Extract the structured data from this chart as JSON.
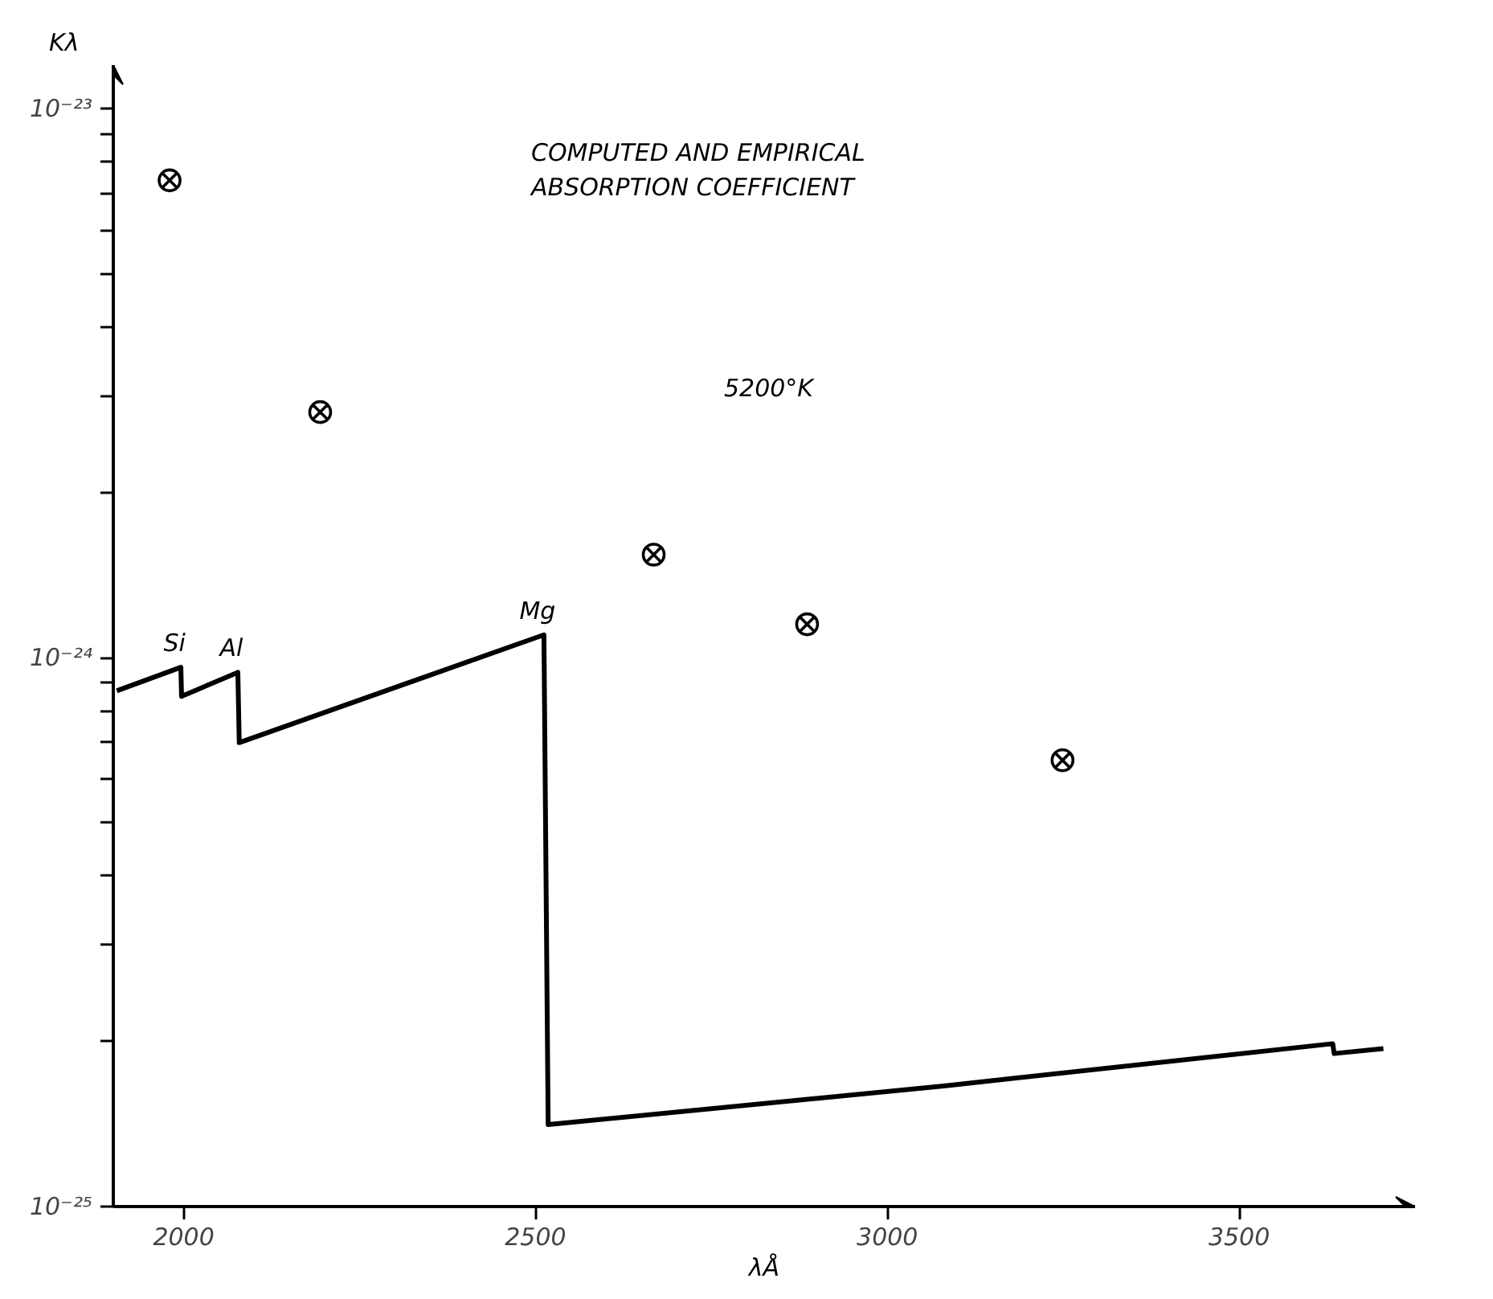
{
  "chart_data": {
    "type": "line",
    "title": "COMPUTED AND EMPIRICAL\nABSORPTION COEFFICIENT",
    "xlabel": "λÅ",
    "ylabel": "Kλ",
    "log": "y",
    "grid": false,
    "xlim": [
      1900,
      3750
    ],
    "ylim": [
      1e-25,
      1.2e-23
    ],
    "xticks": [
      2000,
      2500,
      3000,
      3500
    ],
    "yticks": [
      {
        "value": 1e-25,
        "label": "10⁻²⁵"
      },
      {
        "value": 2e-25,
        "label": null
      },
      {
        "value": 3e-25,
        "label": null
      },
      {
        "value": 4e-25,
        "label": null
      },
      {
        "value": 5e-25,
        "label": null
      },
      {
        "value": 6e-25,
        "label": null
      },
      {
        "value": 7e-25,
        "label": null
      },
      {
        "value": 8e-25,
        "label": null
      },
      {
        "value": 9e-25,
        "label": null
      },
      {
        "value": 1e-24,
        "label": "10⁻²⁴"
      },
      {
        "value": 2e-24,
        "label": null
      },
      {
        "value": 3e-24,
        "label": null
      },
      {
        "value": 4e-24,
        "label": null
      },
      {
        "value": 5e-24,
        "label": null
      },
      {
        "value": 6e-24,
        "label": null
      },
      {
        "value": 7e-24,
        "label": null
      },
      {
        "value": 8e-24,
        "label": null
      },
      {
        "value": 9e-24,
        "label": null
      },
      {
        "value": 1e-23,
        "label": "10⁻²³"
      }
    ],
    "series": [
      {
        "color": "#000000",
        "line_style": "solid",
        "x": [
          1905,
          1996,
          1997,
          2077,
          2079,
          2512,
          2518,
          3083,
          3633,
          3635,
          3705
        ],
        "values": [
          8.7e-25,
          9.6e-25,
          8.5e-25,
          9.4e-25,
          7e-25,
          1.1e-24,
          1.41e-25,
          1.66e-25,
          1.98e-25,
          1.9e-25,
          1.94e-25
        ]
      },
      {
        "type": "scatter",
        "color": "#000000",
        "x": [
          1980,
          2194,
          2668,
          2886,
          3249
        ],
        "values": [
          7.4e-24,
          2.8e-24,
          1.54e-24,
          1.15e-24,
          6.5e-25
        ]
      }
    ],
    "annotations": [
      {
        "text": "Si",
        "x": 1996,
        "y": 9.6e-25
      },
      {
        "text": "Al",
        "x": 2077,
        "y": 9.4e-25
      },
      {
        "text": "Mg",
        "x": 2512,
        "y": 1.1e-24
      },
      "5200°K"
    ]
  }
}
